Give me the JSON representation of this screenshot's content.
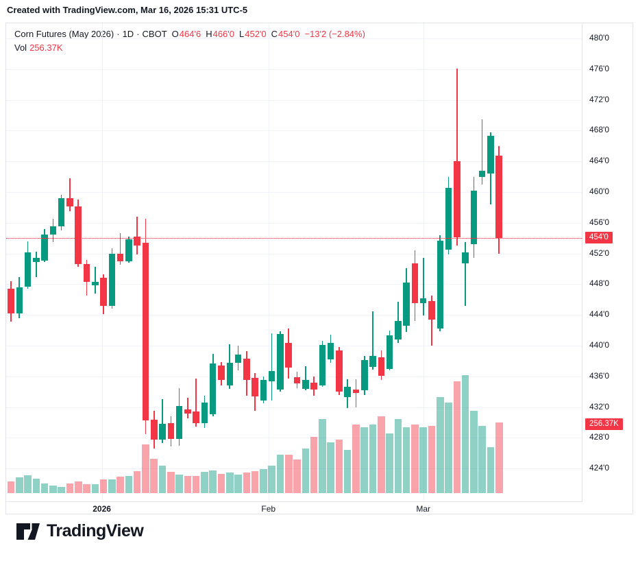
{
  "header": {
    "attribution": "Created with TradingView.com, Mar 16, 2026 15:31 UTC-5"
  },
  "legend": {
    "symbol": "Corn Futures (May 2026)",
    "sep1": "·",
    "interval": "1D",
    "sep2": "·",
    "exchange": "CBOT",
    "o_label": "O",
    "o_value": "464'6",
    "h_label": "H",
    "h_value": "466'0",
    "l_label": "L",
    "l_value": "452'0",
    "c_label": "C",
    "c_value": "454'0",
    "change": "−13'2 (−2.84%)",
    "vol_label": "Vol",
    "vol_value": "256.37K"
  },
  "price_axis": {
    "last_price_badge": "454'0",
    "volume_badge": "256.37K"
  },
  "footer": {
    "logo_text": "TradingView"
  },
  "colors": {
    "up": "#089981",
    "down": "#f23645",
    "vol_up": "rgba(8,153,129,0.45)",
    "vol_down": "rgba(242,54,69,0.45)",
    "grid": "#f0f3fa",
    "frame": "#e0e3eb",
    "text": "#131722",
    "accent_red": "#f23645"
  },
  "chart_data": {
    "type": "candlestick",
    "title": "Corn Futures (May 2026) · 1D · CBOT",
    "subtitle": "Daily candles with volume, Dec 2025 – Mar 16 2026",
    "ohlc_display": {
      "open": "464'6",
      "high": "466'0",
      "low": "452'0",
      "close": "454'0",
      "change": "−13'2 (−2.84%)",
      "volume": "256.37K"
    },
    "ylim": [
      421.5,
      482
    ],
    "grid": true,
    "legend_position": "top-left",
    "price_ticks": [
      {
        "value": 480,
        "label": "480'0"
      },
      {
        "value": 476,
        "label": "476'0"
      },
      {
        "value": 472,
        "label": "472'0"
      },
      {
        "value": 468,
        "label": "468'0"
      },
      {
        "value": 464,
        "label": "464'0"
      },
      {
        "value": 460,
        "label": "460'0"
      },
      {
        "value": 456,
        "label": "456'0"
      },
      {
        "value": 452,
        "label": "452'0"
      },
      {
        "value": 448,
        "label": "448'0"
      },
      {
        "value": 444,
        "label": "444'0"
      },
      {
        "value": 440,
        "label": "440'0"
      },
      {
        "value": 436,
        "label": "436'0"
      },
      {
        "value": 432,
        "label": "432'0"
      },
      {
        "value": 428,
        "label": "428'0"
      },
      {
        "value": 424,
        "label": "424'0"
      }
    ],
    "last_price": {
      "value": 454.0,
      "label": "454'0"
    },
    "volume_last": {
      "value_k": 256.37,
      "label": "256.37K"
    },
    "time_labels": [
      {
        "text": "2026",
        "index": 10.8,
        "bold": true
      },
      {
        "text": "Feb",
        "index": 30.6,
        "bold": false
      },
      {
        "text": "Mar",
        "index": 49.0,
        "bold": false
      }
    ],
    "candles_format": [
      "open",
      "high",
      "low",
      "close",
      "volume_k"
    ],
    "candles": [
      [
        447.4,
        448.4,
        443.1,
        444.2,
        42
      ],
      [
        444.2,
        448.9,
        443.6,
        447.6,
        57
      ],
      [
        447.7,
        453.6,
        447.4,
        452.1,
        65
      ],
      [
        450.9,
        452.2,
        448.9,
        451.4,
        52
      ],
      [
        451.1,
        455.2,
        450.9,
        454.5,
        35
      ],
      [
        454.5,
        456.5,
        453.5,
        455.5,
        27
      ],
      [
        455.5,
        459.6,
        455.0,
        459.2,
        22
      ],
      [
        459.2,
        461.8,
        457.5,
        458.1,
        35
      ],
      [
        458.1,
        459.0,
        450.3,
        450.6,
        42
      ],
      [
        450.6,
        451.2,
        446.5,
        448.3,
        32
      ],
      [
        447.9,
        450.3,
        446.8,
        448.3,
        32
      ],
      [
        448.8,
        449.3,
        444.1,
        445.2,
        50
      ],
      [
        445.2,
        452.7,
        444.8,
        452.0,
        50
      ],
      [
        452.0,
        454.6,
        450.5,
        451.0,
        60
      ],
      [
        451.0,
        454.2,
        450.8,
        453.8,
        62
      ],
      [
        454.2,
        456.8,
        451.9,
        453.0,
        80
      ],
      [
        453.4,
        456.5,
        428.5,
        430.3,
        177
      ],
      [
        430.4,
        431.5,
        426.6,
        427.8,
        125
      ],
      [
        427.8,
        433.0,
        427.3,
        429.8,
        100
      ],
      [
        429.9,
        430.8,
        426.9,
        427.9,
        77
      ],
      [
        427.9,
        434.5,
        427.0,
        432.1,
        67
      ],
      [
        431.7,
        433.2,
        430.5,
        431.2,
        62
      ],
      [
        431.4,
        435.7,
        429.5,
        429.9,
        62
      ],
      [
        429.9,
        433.5,
        429.3,
        432.6,
        77
      ],
      [
        431.1,
        438.9,
        430.8,
        437.7,
        82
      ],
      [
        437.4,
        437.9,
        434.8,
        435.5,
        70
      ],
      [
        434.8,
        440.2,
        434.4,
        437.8,
        75
      ],
      [
        437.8,
        440.0,
        436.8,
        438.8,
        67
      ],
      [
        438.3,
        439.3,
        433.5,
        435.5,
        75
      ],
      [
        435.8,
        436.4,
        431.5,
        433.4,
        80
      ],
      [
        432.9,
        436.0,
        432.5,
        435.5,
        87
      ],
      [
        435.4,
        441.6,
        432.9,
        436.7,
        100
      ],
      [
        434.3,
        441.9,
        434.0,
        441.5,
        139
      ],
      [
        440.4,
        442.2,
        435.7,
        437.1,
        139
      ],
      [
        435.9,
        436.6,
        434.5,
        435.1,
        122
      ],
      [
        434.4,
        437.3,
        434.2,
        435.5,
        162
      ],
      [
        435.2,
        436.0,
        433.5,
        434.3,
        204
      ],
      [
        434.8,
        440.6,
        434.6,
        440.1,
        271
      ],
      [
        438.2,
        441.4,
        437.8,
        440.4,
        184
      ],
      [
        439.4,
        439.8,
        433.6,
        434.0,
        194
      ],
      [
        433.3,
        435.6,
        431.9,
        434.6,
        157
      ],
      [
        434.3,
        435.6,
        432.0,
        433.8,
        249
      ],
      [
        434.2,
        438.7,
        433.6,
        438.1,
        239
      ],
      [
        437.2,
        444.5,
        436.9,
        438.7,
        249
      ],
      [
        438.5,
        439.4,
        435.5,
        436.1,
        279
      ],
      [
        437.0,
        442.0,
        436.8,
        441.3,
        217
      ],
      [
        440.8,
        445.7,
        440.4,
        443.2,
        271
      ],
      [
        442.6,
        450.1,
        441.8,
        448.2,
        239
      ],
      [
        450.7,
        452.4,
        443.2,
        445.5,
        251
      ],
      [
        445.5,
        451.4,
        443.9,
        446.2,
        239
      ],
      [
        445.8,
        446.5,
        440.0,
        443.4,
        246
      ],
      [
        442.2,
        454.4,
        441.9,
        453.7,
        351
      ],
      [
        452.5,
        462.0,
        451.9,
        460.5,
        329
      ],
      [
        464.0,
        476.1,
        453.0,
        454.1,
        408
      ],
      [
        450.7,
        453.5,
        445.2,
        452.1,
        431
      ],
      [
        453.2,
        462.0,
        451.4,
        460.2,
        299
      ],
      [
        462.0,
        469.5,
        461.0,
        462.8,
        244
      ],
      [
        462.4,
        467.8,
        458.4,
        467.3,
        167
      ],
      [
        464.75,
        466.0,
        452.0,
        454.0,
        256.37
      ]
    ]
  }
}
